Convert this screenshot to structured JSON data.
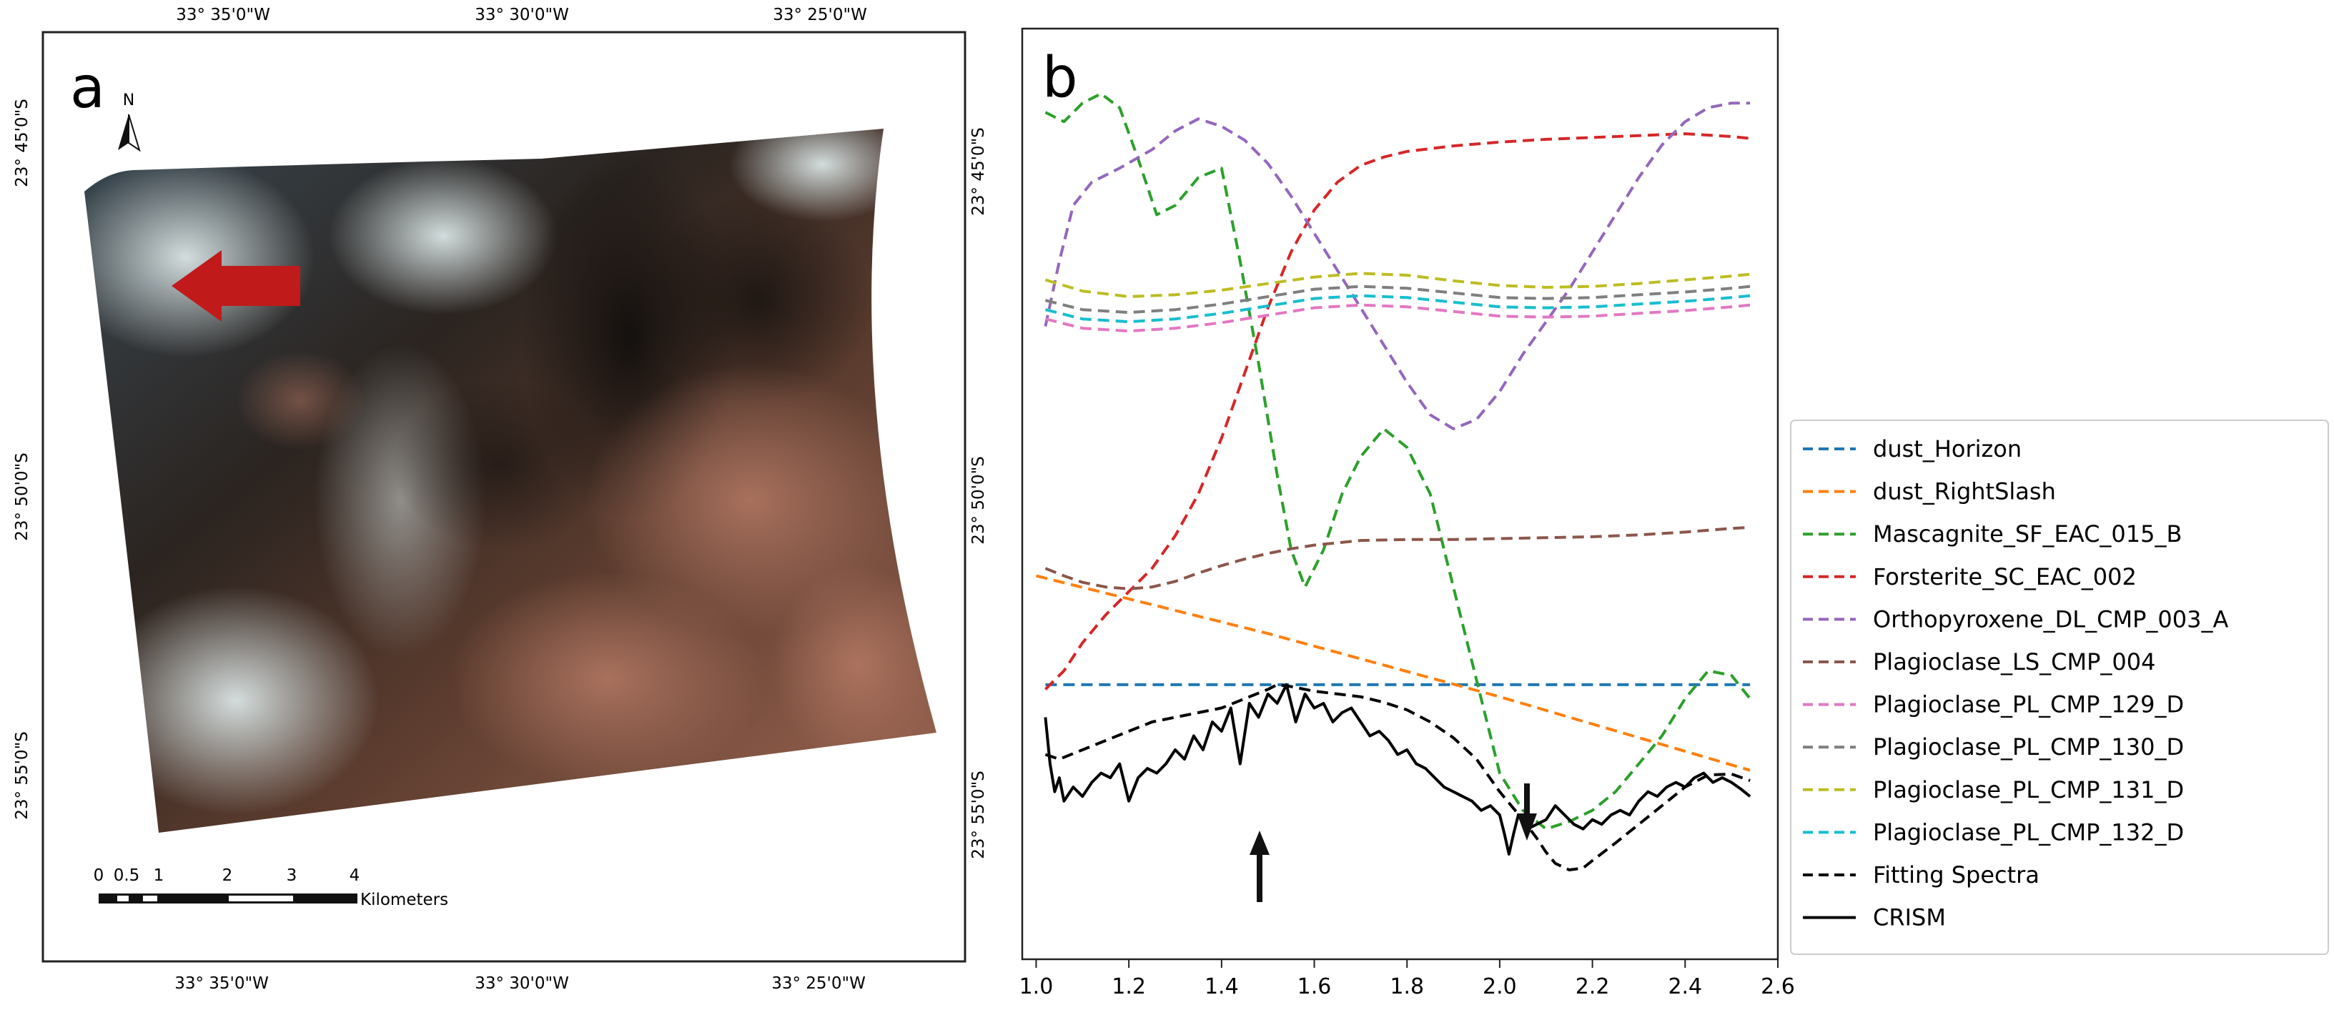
{
  "panel_a": {
    "label": "a",
    "north": "N",
    "top_lon_labels": [
      "33° 35'0\"W",
      "33° 30'0\"W",
      "33° 25'0\"W"
    ],
    "bottom_lon_labels": [
      "33° 35'0\"W",
      "33° 30'0\"W",
      "33° 25'0\"W"
    ],
    "left_lat_labels": [
      "23° 45'0\"S",
      "23° 50'0\"S",
      "23° 55'0\"S"
    ],
    "right_lat_labels": [
      "23° 45'0\"S",
      "23° 50'0\"S",
      "23° 55'0\"S"
    ],
    "scale_ticks": [
      "0",
      "0.5",
      "1",
      "2",
      "3",
      "4"
    ],
    "scale_unit": "Kilometers",
    "colors": {
      "arrow": "#c01a1a",
      "terrain_dark": "#2a2520",
      "terrain_rust": "#9a5a45",
      "terrain_light": "#c9d6d6"
    }
  },
  "panel_b": {
    "label": "b",
    "annotations": [
      "up arrow at 1.45 µm",
      "down arrow at 2.05 µm"
    ]
  },
  "chart_data": {
    "type": "line",
    "title": "",
    "xlabel": "",
    "ylabel": "",
    "xlim": [
      0.97,
      2.6
    ],
    "ylim": [
      0,
      100
    ],
    "xticks": [
      1.0,
      1.2,
      1.4,
      1.6,
      1.8,
      2.0,
      2.2,
      2.4,
      2.6
    ],
    "xtick_labels": [
      "1.0",
      "1.2",
      "1.4",
      "1.6",
      "1.8",
      "2.0",
      "2.2",
      "2.4",
      "2.6"
    ],
    "legend_position": "outside-right",
    "series": [
      {
        "name": "dust_Horizon",
        "color": "#1f77b4",
        "dash": true,
        "x": [
          1.02,
          2.54
        ],
        "y": [
          29.5,
          29.5
        ]
      },
      {
        "name": "dust_RightSlash",
        "color": "#ff7f0e",
        "dash": true,
        "x": [
          1.0,
          1.5,
          2.0,
          2.54
        ],
        "y": [
          41.2,
          35.0,
          28.2,
          20.3
        ]
      },
      {
        "name": "Mascagnite_SF_EAC_015_B",
        "color": "#2ca02c",
        "dash": true,
        "x": [
          1.02,
          1.06,
          1.1,
          1.14,
          1.18,
          1.22,
          1.26,
          1.3,
          1.35,
          1.4,
          1.44,
          1.48,
          1.52,
          1.55,
          1.58,
          1.62,
          1.66,
          1.7,
          1.75,
          1.8,
          1.85,
          1.9,
          1.95,
          2.0,
          2.05,
          2.1,
          2.15,
          2.2,
          2.25,
          2.3,
          2.35,
          2.4,
          2.45,
          2.5,
          2.54
        ],
        "y": [
          91,
          90,
          92,
          93,
          91.5,
          86,
          80,
          81,
          84,
          85,
          75,
          64,
          52,
          44,
          40,
          44,
          50,
          54,
          57,
          55,
          50,
          40,
          30,
          20,
          16,
          14,
          14.8,
          16,
          18,
          21,
          24,
          28,
          31,
          30.5,
          28
        ]
      },
      {
        "name": "Forsterite_SC_EAC_002",
        "color": "#d62728",
        "dash": true,
        "x": [
          1.02,
          1.06,
          1.1,
          1.15,
          1.2,
          1.25,
          1.3,
          1.35,
          1.4,
          1.45,
          1.5,
          1.55,
          1.6,
          1.65,
          1.7,
          1.75,
          1.8,
          1.9,
          2.0,
          2.1,
          2.2,
          2.3,
          2.4,
          2.5,
          2.54
        ],
        "y": [
          29,
          31,
          34,
          37,
          39.5,
          42,
          45.5,
          50,
          56,
          63,
          70,
          76,
          80.5,
          83.5,
          85.3,
          86.2,
          86.8,
          87.4,
          87.8,
          88.1,
          88.3,
          88.5,
          88.7,
          88.4,
          88.2
        ]
      },
      {
        "name": "Orthopyroxene_DL_CMP_003_A",
        "color": "#9467bd",
        "dash": true,
        "x": [
          1.02,
          1.05,
          1.08,
          1.12,
          1.18,
          1.25,
          1.3,
          1.35,
          1.4,
          1.45,
          1.5,
          1.55,
          1.6,
          1.65,
          1.7,
          1.75,
          1.8,
          1.85,
          1.9,
          1.95,
          2.0,
          2.05,
          2.1,
          2.15,
          2.2,
          2.25,
          2.3,
          2.35,
          2.4,
          2.45,
          2.5,
          2.54
        ],
        "y": [
          68,
          75,
          81,
          83.5,
          85,
          87,
          89,
          90.3,
          89.5,
          88,
          85.5,
          82,
          78,
          74,
          70,
          66,
          62,
          58.5,
          57,
          58,
          61,
          65,
          68.5,
          72,
          76,
          80,
          84,
          87.5,
          90,
          91.5,
          92,
          92
        ]
      },
      {
        "name": "Plagioclase_LS_CMP_004",
        "color": "#8c564b",
        "dash": true,
        "x": [
          1.02,
          1.06,
          1.1,
          1.15,
          1.2,
          1.25,
          1.3,
          1.35,
          1.4,
          1.45,
          1.5,
          1.55,
          1.6,
          1.7,
          1.8,
          1.9,
          2.0,
          2.1,
          2.2,
          2.3,
          2.4,
          2.5,
          2.54
        ],
        "y": [
          42,
          41.2,
          40.5,
          40,
          39.8,
          40,
          40.6,
          41.5,
          42.3,
          43,
          43.6,
          44.1,
          44.5,
          45,
          45.1,
          45.1,
          45.2,
          45.3,
          45.4,
          45.6,
          45.9,
          46.3,
          46.4
        ]
      },
      {
        "name": "Plagioclase_PL_CMP_129_D",
        "color": "#e377c2",
        "dash": true,
        "x": [
          1.02,
          1.1,
          1.2,
          1.3,
          1.4,
          1.5,
          1.6,
          1.7,
          1.8,
          1.9,
          2.0,
          2.1,
          2.2,
          2.3,
          2.4,
          2.5,
          2.54
        ],
        "y": [
          68.8,
          67.8,
          67.5,
          67.8,
          68.4,
          69.2,
          70,
          70.3,
          70.1,
          69.6,
          69.1,
          69,
          69.1,
          69.4,
          69.7,
          70.1,
          70.3
        ]
      },
      {
        "name": "Plagioclase_PL_CMP_130_D",
        "color": "#7f7f7f",
        "dash": true,
        "x": [
          1.02,
          1.1,
          1.2,
          1.3,
          1.4,
          1.5,
          1.6,
          1.7,
          1.8,
          1.9,
          2.0,
          2.1,
          2.2,
          2.3,
          2.4,
          2.5,
          2.54
        ],
        "y": [
          70.8,
          69.8,
          69.5,
          69.8,
          70.4,
          71.2,
          72,
          72.3,
          72.1,
          71.6,
          71.1,
          71,
          71.1,
          71.4,
          71.7,
          72.1,
          72.3
        ]
      },
      {
        "name": "Plagioclase_PL_CMP_131_D",
        "color": "#bcbd22",
        "dash": true,
        "x": [
          1.02,
          1.1,
          1.2,
          1.3,
          1.4,
          1.5,
          1.6,
          1.7,
          1.8,
          1.9,
          2.0,
          2.1,
          2.2,
          2.3,
          2.4,
          2.5,
          2.54
        ],
        "y": [
          73,
          71.8,
          71.2,
          71.4,
          71.9,
          72.6,
          73.3,
          73.7,
          73.5,
          72.9,
          72.4,
          72.2,
          72.3,
          72.6,
          73,
          73.4,
          73.6
        ]
      },
      {
        "name": "Plagioclase_PL_CMP_132_D",
        "color": "#17becf",
        "dash": true,
        "x": [
          1.02,
          1.1,
          1.2,
          1.3,
          1.4,
          1.5,
          1.6,
          1.7,
          1.8,
          1.9,
          2.0,
          2.1,
          2.2,
          2.3,
          2.4,
          2.5,
          2.54
        ],
        "y": [
          69.8,
          68.8,
          68.5,
          68.8,
          69.4,
          70.2,
          71,
          71.3,
          71.1,
          70.6,
          70.1,
          70,
          70.1,
          70.4,
          70.7,
          71.1,
          71.3
        ]
      },
      {
        "name": "Fitting Spectra",
        "color": "#000000",
        "dash": true,
        "x": [
          1.02,
          1.05,
          1.1,
          1.15,
          1.2,
          1.25,
          1.3,
          1.35,
          1.4,
          1.45,
          1.5,
          1.52,
          1.55,
          1.6,
          1.65,
          1.7,
          1.75,
          1.8,
          1.85,
          1.9,
          1.95,
          2.0,
          2.05,
          2.08,
          2.1,
          2.12,
          2.15,
          2.18,
          2.2,
          2.25,
          2.3,
          2.35,
          2.4,
          2.45,
          2.5,
          2.54
        ],
        "y": [
          22,
          21.5,
          22.5,
          23.5,
          24.5,
          25.5,
          26,
          26.5,
          27,
          28,
          29,
          29.5,
          29.3,
          28.8,
          28.5,
          28.2,
          27.6,
          26.8,
          25.5,
          23.8,
          21.5,
          18,
          15,
          13,
          11.5,
          10.3,
          9.6,
          9.8,
          10.6,
          12.5,
          14.5,
          16.5,
          18.5,
          19.8,
          19.9,
          19.2
        ]
      },
      {
        "name": "CRISM",
        "color": "#000000",
        "dash": false,
        "x": [
          1.02,
          1.03,
          1.04,
          1.05,
          1.06,
          1.08,
          1.1,
          1.12,
          1.14,
          1.16,
          1.18,
          1.2,
          1.22,
          1.24,
          1.26,
          1.28,
          1.3,
          1.32,
          1.34,
          1.36,
          1.38,
          1.4,
          1.42,
          1.44,
          1.46,
          1.48,
          1.5,
          1.52,
          1.54,
          1.56,
          1.58,
          1.6,
          1.62,
          1.64,
          1.66,
          1.68,
          1.7,
          1.72,
          1.74,
          1.76,
          1.78,
          1.8,
          1.82,
          1.84,
          1.86,
          1.88,
          1.9,
          1.92,
          1.94,
          1.96,
          1.98,
          2.0,
          2.01,
          2.02,
          2.03,
          2.04,
          2.06,
          2.08,
          2.1,
          2.12,
          2.14,
          2.16,
          2.18,
          2.2,
          2.22,
          2.24,
          2.26,
          2.28,
          2.3,
          2.32,
          2.34,
          2.36,
          2.38,
          2.4,
          2.42,
          2.44,
          2.46,
          2.48,
          2.5,
          2.52,
          2.54
        ],
        "y": [
          26,
          21,
          18,
          19.5,
          17,
          18.5,
          17.5,
          19,
          20,
          19.5,
          21,
          17,
          19.5,
          20.5,
          20,
          21,
          22.5,
          21.5,
          24,
          22.5,
          25.5,
          24.5,
          27,
          21,
          27.5,
          26,
          28.5,
          27.5,
          29.5,
          25.5,
          28.5,
          27,
          27.5,
          25.5,
          26.5,
          27,
          25.5,
          24,
          24.5,
          23.5,
          22,
          22.5,
          21,
          20.5,
          19.5,
          18.5,
          18,
          17.5,
          17,
          16,
          16.5,
          15.5,
          13.5,
          11.3,
          13.5,
          15.5,
          14,
          14.5,
          15,
          16.5,
          15.5,
          14.5,
          14,
          15,
          14.5,
          15.5,
          16,
          15.5,
          17,
          18,
          17.5,
          18.5,
          19,
          18.5,
          19.5,
          20,
          19,
          19.5,
          19,
          18.3,
          17.5
        ]
      }
    ]
  }
}
